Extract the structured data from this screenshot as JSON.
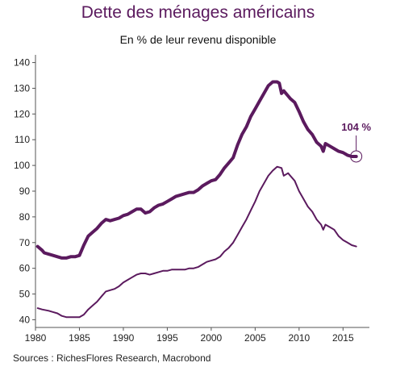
{
  "chart_data": {
    "type": "line",
    "title": "Dette des ménages américains",
    "subtitle": "En % de leur revenu disponible",
    "xlim": [
      1980,
      2018
    ],
    "ylim": [
      37,
      143
    ],
    "x_ticks": [
      1980,
      1985,
      1990,
      1995,
      2000,
      2005,
      2010,
      2015
    ],
    "y_ticks": [
      40,
      50,
      60,
      70,
      80,
      90,
      100,
      110,
      120,
      130,
      140
    ],
    "grid": false,
    "series": [
      {
        "color": "#5b1a5e",
        "line_weight": "thick",
        "x": [
          1980.25,
          1980.75,
          1981.0,
          1981.5,
          1982.0,
          1982.5,
          1983.0,
          1983.5,
          1984.0,
          1984.5,
          1985.0,
          1985.5,
          1986.0,
          1986.5,
          1987.0,
          1987.5,
          1988.0,
          1988.5,
          1989.0,
          1989.5,
          1990.0,
          1990.5,
          1991.0,
          1991.5,
          1992.0,
          1992.5,
          1993.0,
          1993.5,
          1994.0,
          1994.5,
          1995.0,
          1995.5,
          1996.0,
          1996.5,
          1997.0,
          1997.5,
          1998.0,
          1998.5,
          1999.0,
          1999.5,
          2000.0,
          2000.5,
          2001.0,
          2001.5,
          2002.0,
          2002.5,
          2003.0,
          2003.5,
          2004.0,
          2004.5,
          2005.0,
          2005.5,
          2006.0,
          2006.5,
          2007.0,
          2007.5,
          2007.75,
          2008.0,
          2008.25,
          2008.5,
          2008.75,
          2009.0,
          2009.5,
          2010.0,
          2010.5,
          2011.0,
          2011.5,
          2012.0,
          2012.5,
          2012.75,
          2013.0,
          2013.5,
          2014.0,
          2014.5,
          2015.0,
          2015.5,
          2016.0,
          2016.5
        ],
        "y": [
          68.5,
          67.0,
          66.0,
          65.5,
          65.0,
          64.5,
          64.0,
          64.0,
          64.5,
          64.5,
          65.0,
          69.0,
          72.5,
          74.0,
          75.5,
          77.5,
          79.0,
          78.5,
          79.0,
          79.5,
          80.5,
          81.0,
          82.0,
          83.0,
          83.0,
          81.5,
          82.0,
          83.5,
          84.5,
          85.0,
          86.0,
          87.0,
          88.0,
          88.5,
          89.0,
          89.5,
          89.5,
          90.5,
          92.0,
          93.0,
          94.0,
          94.5,
          96.5,
          99.0,
          101.0,
          103.0,
          108.0,
          112.0,
          115.0,
          119.0,
          122.0,
          125.0,
          128.0,
          131.0,
          132.5,
          132.5,
          132.0,
          128.0,
          129.0,
          128.0,
          127.0,
          126.0,
          124.5,
          121.0,
          117.0,
          114.0,
          112.0,
          109.0,
          107.5,
          105.5,
          108.5,
          107.5,
          106.5,
          105.5,
          105.0,
          104.0,
          103.5,
          103.5
        ]
      },
      {
        "color": "#5b1a5e",
        "line_weight": "thin",
        "x": [
          1980.25,
          1980.75,
          1981.5,
          1982.0,
          1982.5,
          1983.0,
          1983.5,
          1984.0,
          1984.5,
          1985.0,
          1985.5,
          1986.0,
          1986.5,
          1987.0,
          1987.5,
          1988.0,
          1988.5,
          1989.0,
          1989.5,
          1990.0,
          1990.5,
          1991.0,
          1991.5,
          1992.0,
          1992.5,
          1993.0,
          1993.5,
          1994.0,
          1994.5,
          1995.0,
          1995.5,
          1996.0,
          1996.5,
          1997.0,
          1997.5,
          1998.0,
          1998.5,
          1999.0,
          1999.5,
          2000.0,
          2000.5,
          2001.0,
          2001.5,
          2002.0,
          2002.5,
          2003.0,
          2003.5,
          2004.0,
          2004.5,
          2005.0,
          2005.5,
          2006.0,
          2006.5,
          2007.0,
          2007.5,
          2008.0,
          2008.25,
          2008.5,
          2008.75,
          2009.0,
          2009.5,
          2010.0,
          2010.5,
          2011.0,
          2011.5,
          2012.0,
          2012.5,
          2012.75,
          2013.0,
          2013.5,
          2014.0,
          2014.5,
          2015.0,
          2015.5,
          2016.0,
          2016.5
        ],
        "y": [
          44.5,
          44.0,
          43.5,
          43.0,
          42.5,
          41.5,
          41.0,
          41.0,
          41.0,
          41.0,
          42.0,
          44.0,
          45.5,
          47.0,
          49.0,
          51.0,
          51.5,
          52.0,
          53.0,
          54.5,
          55.5,
          56.5,
          57.5,
          58.0,
          58.0,
          57.5,
          58.0,
          58.5,
          59.0,
          59.0,
          59.5,
          59.5,
          59.5,
          59.5,
          60.0,
          60.0,
          60.5,
          61.5,
          62.5,
          63.0,
          63.5,
          64.5,
          66.5,
          68.0,
          70.0,
          73.0,
          76.0,
          79.0,
          82.5,
          86.0,
          90.0,
          93.0,
          96.0,
          98.0,
          99.5,
          99.0,
          96.0,
          96.5,
          97.0,
          96.0,
          94.0,
          90.0,
          87.0,
          84.0,
          82.0,
          79.0,
          77.0,
          75.0,
          77.0,
          76.0,
          75.0,
          72.5,
          71.0,
          70.0,
          69.0,
          68.5
        ]
      }
    ],
    "annotation": {
      "text": "104 %",
      "x": 2016.5,
      "y": 103.5
    }
  },
  "source": "Sources : RichesFlores Research, Macrobond"
}
